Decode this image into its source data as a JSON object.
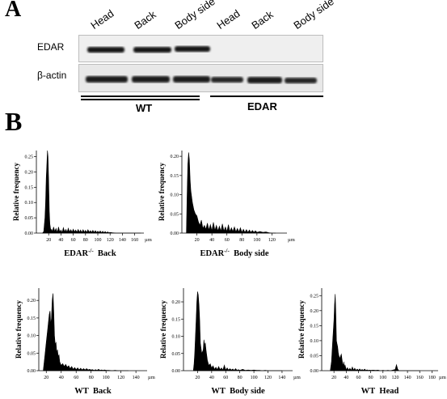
{
  "figure": {
    "panel_a_label": "A",
    "panel_b_label": "B"
  },
  "western_blot": {
    "lanes": [
      "Head",
      "Back",
      "Body side",
      "Head",
      "Back",
      "Body side"
    ],
    "rows": [
      {
        "label": "EDAR",
        "band_intensity": [
          1,
          1,
          1,
          0,
          0,
          0
        ]
      },
      {
        "label": "β-actin",
        "band_intensity": [
          1,
          1,
          1,
          1,
          1,
          1
        ]
      }
    ],
    "groups": [
      {
        "label": "WT",
        "lanes": [
          1,
          3
        ]
      },
      {
        "label": "EDAR",
        "lanes": [
          4,
          6
        ]
      }
    ]
  },
  "chart_data": [
    {
      "type": "area",
      "caption_genotype": "EDAR",
      "caption_sup": "-/-",
      "caption_region": "Back",
      "ylabel": "Relative frequency",
      "unit_label": "µm",
      "x_ticks": [
        "20",
        "40",
        "60",
        "80",
        "100",
        "120",
        "140",
        "160"
      ],
      "y_ticks": [
        "0.00",
        "0.05",
        "0.10",
        "0.15",
        "0.20",
        "0.25"
      ],
      "xlim": [
        0,
        175
      ],
      "ylim": [
        0,
        0.27
      ],
      "x": [
        10,
        12,
        14,
        15,
        16,
        17,
        18,
        19,
        20,
        21,
        22,
        23,
        24,
        25,
        26,
        28,
        30,
        32,
        34,
        36,
        38,
        40,
        42,
        44,
        46,
        48,
        50,
        52,
        54,
        56,
        58,
        60,
        62,
        64,
        66,
        68,
        70,
        72,
        74,
        76,
        78,
        80,
        82,
        84,
        86,
        88,
        90,
        92,
        94,
        96,
        98,
        100,
        102,
        104,
        106,
        108,
        110,
        112,
        114,
        116,
        118,
        120,
        124,
        130,
        140,
        150,
        160,
        170
      ],
      "values": [
        0,
        0.005,
        0.05,
        0.1,
        0.18,
        0.22,
        0.27,
        0.25,
        0.17,
        0.07,
        0.03,
        0.015,
        0.01,
        0.012,
        0.004,
        0.02,
        0.005,
        0.015,
        0.002,
        0.02,
        0.004,
        0.01,
        0.002,
        0.018,
        0.004,
        0.012,
        0.003,
        0.016,
        0.004,
        0.011,
        0.003,
        0.013,
        0.004,
        0.01,
        0.003,
        0.012,
        0.003,
        0.01,
        0.002,
        0.011,
        0.003,
        0.009,
        0.002,
        0.011,
        0.003,
        0.008,
        0.002,
        0.009,
        0.002,
        0.008,
        0.002,
        0.006,
        0.002,
        0.007,
        0.001,
        0.006,
        0.001,
        0.005,
        0.001,
        0.004,
        0.001,
        0.002,
        0.001,
        0,
        0,
        0,
        0,
        0
      ]
    },
    {
      "type": "area",
      "caption_genotype": "EDAR",
      "caption_sup": "-/-",
      "caption_region": "Body side",
      "ylabel": "Relative frequency",
      "unit_label": "µm",
      "x_ticks": [
        "20",
        "40",
        "60",
        "80",
        "100",
        "120"
      ],
      "y_ticks": [
        "0.00",
        "0.05",
        "0.10",
        "0.15",
        "0.20"
      ],
      "xlim": [
        0,
        140
      ],
      "ylim": [
        0,
        0.215
      ],
      "x": [
        6,
        7,
        8,
        9,
        10,
        11,
        12,
        14,
        16,
        18,
        20,
        22,
        24,
        26,
        28,
        30,
        32,
        34,
        36,
        38,
        40,
        42,
        44,
        46,
        48,
        50,
        52,
        54,
        56,
        58,
        60,
        62,
        64,
        66,
        68,
        70,
        72,
        74,
        76,
        78,
        80,
        82,
        84,
        86,
        88,
        90,
        92,
        94,
        96,
        98,
        100,
        104,
        108,
        112,
        116,
        120,
        125
      ],
      "values": [
        0,
        0.1,
        0.18,
        0.21,
        0.19,
        0.14,
        0.11,
        0.08,
        0.06,
        0.05,
        0.045,
        0.03,
        0.02,
        0.034,
        0.012,
        0.02,
        0.01,
        0.026,
        0.008,
        0.022,
        0.006,
        0.028,
        0.007,
        0.02,
        0.006,
        0.018,
        0.005,
        0.024,
        0.005,
        0.016,
        0.004,
        0.022,
        0.004,
        0.014,
        0.004,
        0.016,
        0.003,
        0.012,
        0.003,
        0.014,
        0.002,
        0.01,
        0.002,
        0.009,
        0.002,
        0.008,
        0.002,
        0.007,
        0.002,
        0.006,
        0.002,
        0.004,
        0.002,
        0.003,
        0.001,
        0,
        0
      ]
    },
    {
      "type": "area",
      "caption_genotype": "WT",
      "caption_sup": "",
      "caption_region": "Back",
      "ylabel": "Relative frequency",
      "unit_label": "µm",
      "x_ticks": [
        "20",
        "40",
        "60",
        "80",
        "100",
        "120",
        "140"
      ],
      "y_ticks": [
        "0.00",
        "0.05",
        "0.10",
        "0.15",
        "0.20"
      ],
      "xlim": [
        10,
        155
      ],
      "ylim": [
        0,
        0.235
      ],
      "x": [
        16,
        18,
        20,
        22,
        24,
        25,
        26,
        27,
        28,
        29,
        30,
        31,
        32,
        33,
        34,
        35,
        36,
        37,
        38,
        40,
        42,
        44,
        46,
        48,
        50,
        52,
        54,
        56,
        58,
        60,
        62,
        64,
        66,
        68,
        70,
        72,
        74,
        76,
        78,
        80,
        82,
        84,
        86,
        88,
        90,
        92,
        94,
        96,
        98,
        100,
        104,
        108,
        112,
        116,
        120,
        125,
        130
      ],
      "values": [
        0,
        0.04,
        0.08,
        0.12,
        0.16,
        0.17,
        0.13,
        0.15,
        0.2,
        0.22,
        0.17,
        0.1,
        0.075,
        0.08,
        0.05,
        0.06,
        0.04,
        0.045,
        0.025,
        0.015,
        0.02,
        0.012,
        0.018,
        0.01,
        0.014,
        0.006,
        0.012,
        0.004,
        0.009,
        0.003,
        0.008,
        0.002,
        0.007,
        0.002,
        0.006,
        0.002,
        0.006,
        0.002,
        0.004,
        0.002,
        0.003,
        0.001,
        0.003,
        0.001,
        0.004,
        0.001,
        0.002,
        0.001,
        0.002,
        0.001,
        0.001,
        0,
        0.001,
        0,
        0,
        0,
        0
      ]
    },
    {
      "type": "area",
      "caption_genotype": "WT",
      "caption_sup": "",
      "caption_region": "Body side",
      "ylabel": "Relative frequency",
      "unit_label": "µm",
      "x_ticks": [
        "20",
        "40",
        "60",
        "80",
        "100",
        "120",
        "140"
      ],
      "y_ticks": [
        "0.00",
        "0.05",
        "0.10",
        "0.15",
        "0.20"
      ],
      "xlim": [
        0,
        155
      ],
      "ylim": [
        0,
        0.24
      ],
      "x": [
        14,
        15,
        16,
        17,
        18,
        19,
        20,
        21,
        22,
        23,
        24,
        26,
        28,
        29,
        30,
        31,
        32,
        34,
        36,
        38,
        40,
        42,
        44,
        46,
        48,
        50,
        52,
        54,
        56,
        58,
        60,
        62,
        64,
        66,
        68,
        70,
        72,
        74,
        76,
        78,
        80,
        84,
        88,
        92,
        96,
        100,
        104,
        108,
        112,
        116,
        120,
        130,
        140
      ],
      "values": [
        0,
        0.02,
        0.05,
        0.1,
        0.15,
        0.2,
        0.23,
        0.22,
        0.19,
        0.15,
        0.08,
        0.05,
        0.06,
        0.09,
        0.075,
        0.08,
        0.06,
        0.03,
        0.015,
        0.02,
        0.008,
        0.014,
        0.004,
        0.01,
        0.003,
        0.012,
        0.003,
        0.008,
        0.002,
        0.016,
        0.002,
        0.008,
        0.002,
        0.006,
        0.002,
        0.005,
        0.001,
        0.006,
        0.001,
        0.003,
        0.001,
        0.004,
        0.001,
        0.002,
        0.001,
        0.002,
        0.001,
        0.001,
        0,
        0.001,
        0,
        0,
        0
      ]
    },
    {
      "type": "area",
      "caption_genotype": "WT",
      "caption_sup": "",
      "caption_region": "Head",
      "ylabel": "Relative frequency",
      "unit_label": "µm",
      "x_ticks": [
        "20",
        "40",
        "60",
        "80",
        "100",
        "120",
        "140",
        "160",
        "180"
      ],
      "y_ticks": [
        "0.00",
        "0.05",
        "0.10",
        "0.15",
        "0.20",
        "0.25"
      ],
      "xlim": [
        0,
        190
      ],
      "ylim": [
        0,
        0.275
      ],
      "x": [
        14,
        16,
        18,
        20,
        21,
        22,
        23,
        24,
        25,
        26,
        27,
        28,
        29,
        30,
        31,
        32,
        33,
        34,
        35,
        36,
        37,
        38,
        40,
        42,
        44,
        46,
        48,
        50,
        52,
        54,
        56,
        58,
        60,
        62,
        64,
        66,
        68,
        70,
        72,
        74,
        76,
        78,
        80,
        84,
        88,
        92,
        96,
        100,
        104,
        108,
        112,
        116,
        120,
        122,
        124,
        126,
        130,
        140,
        150,
        160
      ],
      "values": [
        0,
        0.03,
        0.1,
        0.17,
        0.22,
        0.255,
        0.2,
        0.1,
        0.09,
        0.08,
        0.06,
        0.05,
        0.045,
        0.04,
        0.05,
        0.055,
        0.04,
        0.025,
        0.015,
        0.03,
        0.01,
        0.02,
        0.003,
        0.01,
        0.002,
        0.008,
        0.001,
        0.012,
        0.002,
        0.008,
        0.001,
        0.005,
        0.001,
        0.006,
        0.001,
        0.004,
        0.001,
        0.005,
        0.001,
        0.003,
        0.001,
        0.002,
        0.001,
        0.002,
        0.001,
        0.002,
        0,
        0.001,
        0,
        0.001,
        0,
        0.002,
        0.004,
        0.02,
        0.005,
        0,
        0,
        0,
        0,
        0
      ]
    }
  ]
}
